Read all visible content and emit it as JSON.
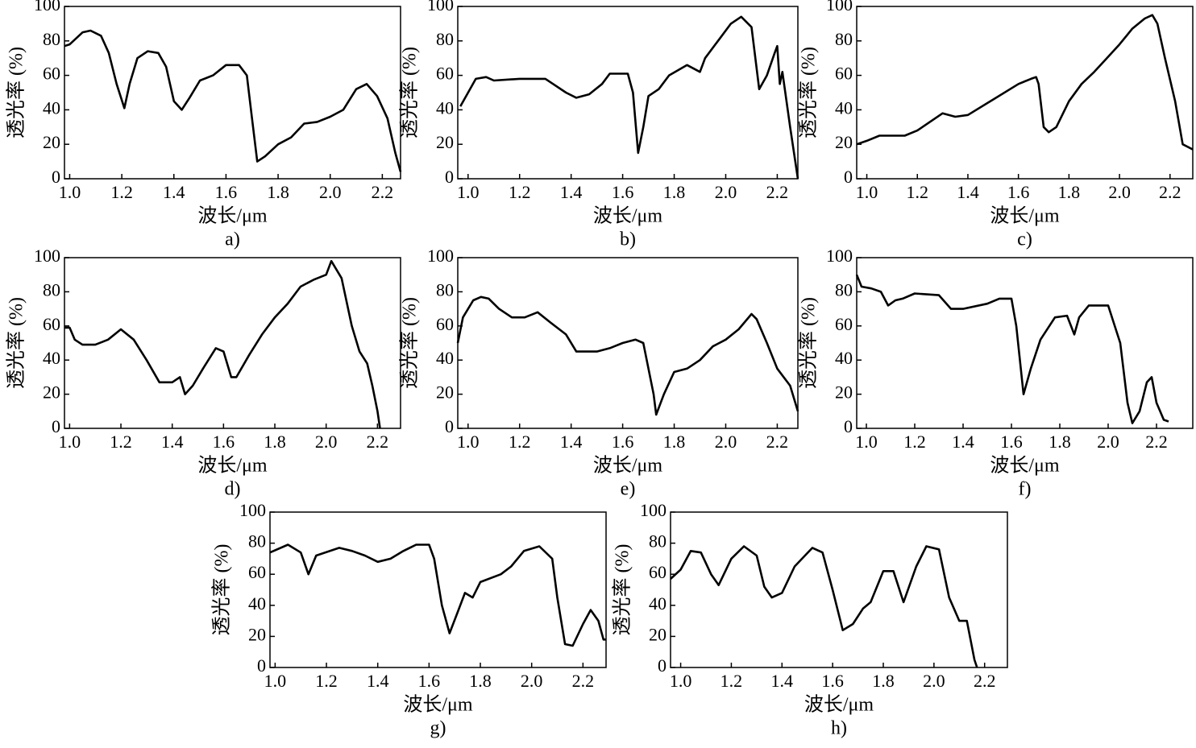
{
  "chart_data": [
    {
      "type": "line",
      "caption": "a)",
      "xlabel": "波长/μm",
      "ylabel": "透光率 (%)",
      "xlim": [
        0.98,
        2.27
      ],
      "ylim": [
        0,
        100
      ],
      "xticks": [
        {
          "value": 1,
          "label": "1.0"
        },
        1.2,
        1.4,
        1.6,
        1.8,
        {
          "value": 2,
          "label": "2.0"
        },
        2.2
      ],
      "yticks": [
        0,
        20,
        40,
        60,
        80,
        100
      ],
      "color": "#000000",
      "x": [
        0.98,
        1.0,
        1.05,
        1.08,
        1.12,
        1.15,
        1.18,
        1.21,
        1.23,
        1.26,
        1.3,
        1.34,
        1.37,
        1.4,
        1.43,
        1.46,
        1.5,
        1.55,
        1.6,
        1.65,
        1.68,
        1.7,
        1.72,
        1.75,
        1.8,
        1.85,
        1.9,
        1.95,
        2.0,
        2.05,
        2.1,
        2.14,
        2.18,
        2.22,
        2.25,
        2.27
      ],
      "values": [
        77,
        78,
        85,
        86,
        83,
        73,
        55,
        41,
        55,
        70,
        74,
        73,
        65,
        45,
        40,
        47,
        57,
        60,
        66,
        66,
        60,
        35,
        10,
        13,
        20,
        24,
        32,
        33,
        36,
        40,
        52,
        55,
        48,
        35,
        15,
        4
      ]
    },
    {
      "type": "line",
      "caption": "b)",
      "xlabel": "波长/μm",
      "ylabel": "透光率 (%)",
      "xlim": [
        0.96,
        2.28
      ],
      "ylim": [
        0,
        100
      ],
      "xticks": [
        {
          "value": 1,
          "label": "1.0"
        },
        1.2,
        1.4,
        1.6,
        1.8,
        {
          "value": 2,
          "label": "2.0"
        },
        2.2
      ],
      "yticks": [
        0,
        20,
        40,
        60,
        80,
        100
      ],
      "color": "#000000",
      "x": [
        0.97,
        1.0,
        1.03,
        1.07,
        1.1,
        1.2,
        1.3,
        1.33,
        1.38,
        1.42,
        1.47,
        1.52,
        1.55,
        1.62,
        1.64,
        1.66,
        1.68,
        1.7,
        1.74,
        1.78,
        1.85,
        1.9,
        1.92,
        1.97,
        2.02,
        2.06,
        2.1,
        2.13,
        2.16,
        2.19,
        2.2,
        2.21,
        2.22,
        2.25,
        2.28
      ],
      "values": [
        42,
        50,
        58,
        59,
        57,
        58,
        58,
        55,
        50,
        47,
        49,
        55,
        61,
        61,
        50,
        15,
        30,
        48,
        52,
        60,
        66,
        62,
        70,
        80,
        90,
        94,
        88,
        52,
        60,
        73,
        77,
        55,
        62,
        30,
        0
      ]
    },
    {
      "type": "line",
      "caption": "c)",
      "xlabel": "波长/μm",
      "ylabel": "透光率 (%)",
      "xlim": [
        0.96,
        2.29
      ],
      "ylim": [
        0,
        100
      ],
      "xticks": [
        {
          "value": 1,
          "label": "1.0"
        },
        1.2,
        1.4,
        1.6,
        1.8,
        {
          "value": 2,
          "label": "2.0"
        },
        2.2
      ],
      "yticks": [
        0,
        20,
        40,
        60,
        80,
        100
      ],
      "color": "#000000",
      "x": [
        0.96,
        1.0,
        1.05,
        1.15,
        1.2,
        1.3,
        1.35,
        1.4,
        1.5,
        1.6,
        1.65,
        1.67,
        1.68,
        1.7,
        1.72,
        1.75,
        1.8,
        1.85,
        1.9,
        1.95,
        2.0,
        2.05,
        2.1,
        2.13,
        2.15,
        2.18,
        2.22,
        2.25,
        2.29
      ],
      "values": [
        20,
        22,
        25,
        25,
        28,
        38,
        36,
        37,
        46,
        55,
        58,
        59,
        55,
        30,
        27,
        30,
        45,
        55,
        62,
        70,
        78,
        87,
        93,
        95,
        90,
        70,
        45,
        20,
        17
      ]
    },
    {
      "type": "line",
      "caption": "d)",
      "xlabel": "波长/μm",
      "ylabel": "透光率 (%)",
      "xlim": [
        0.98,
        2.29
      ],
      "ylim": [
        0,
        100
      ],
      "xticks": [
        {
          "value": 1,
          "label": "1.0"
        },
        1.2,
        1.4,
        1.6,
        1.8,
        {
          "value": 2,
          "label": "2.0"
        },
        2.2
      ],
      "yticks": [
        0,
        20,
        40,
        60,
        80,
        100
      ],
      "color": "#000000",
      "x": [
        0.98,
        1.0,
        1.02,
        1.05,
        1.1,
        1.15,
        1.2,
        1.25,
        1.3,
        1.35,
        1.4,
        1.43,
        1.45,
        1.48,
        1.52,
        1.57,
        1.6,
        1.63,
        1.65,
        1.7,
        1.75,
        1.8,
        1.85,
        1.9,
        1.95,
        2.0,
        2.02,
        2.06,
        2.1,
        2.13,
        2.16,
        2.18,
        2.2,
        2.21
      ],
      "values": [
        59,
        59,
        52,
        49,
        49,
        52,
        58,
        52,
        40,
        27,
        27,
        30,
        20,
        25,
        35,
        47,
        45,
        30,
        30,
        43,
        55,
        65,
        73,
        83,
        87,
        90,
        98,
        88,
        60,
        45,
        38,
        25,
        10,
        0
      ]
    },
    {
      "type": "line",
      "caption": "e)",
      "xlabel": "波长/μm",
      "ylabel": "透光率 (%)",
      "xlim": [
        0.96,
        2.28
      ],
      "ylim": [
        0,
        100
      ],
      "xticks": [
        {
          "value": 1,
          "label": "1.0"
        },
        1.2,
        1.4,
        1.6,
        1.8,
        {
          "value": 2,
          "label": "2.0"
        },
        2.2
      ],
      "yticks": [
        0,
        20,
        40,
        60,
        80,
        100
      ],
      "color": "#000000",
      "x": [
        0.96,
        0.98,
        1.02,
        1.05,
        1.08,
        1.12,
        1.17,
        1.22,
        1.27,
        1.32,
        1.38,
        1.42,
        1.5,
        1.55,
        1.6,
        1.65,
        1.68,
        1.72,
        1.73,
        1.76,
        1.8,
        1.85,
        1.9,
        1.95,
        2.0,
        2.05,
        2.1,
        2.12,
        2.16,
        2.2,
        2.25,
        2.28
      ],
      "values": [
        50,
        65,
        75,
        77,
        76,
        70,
        65,
        65,
        68,
        62,
        55,
        45,
        45,
        47,
        50,
        52,
        50,
        20,
        8,
        20,
        33,
        35,
        40,
        48,
        52,
        58,
        67,
        64,
        50,
        35,
        25,
        10
      ]
    },
    {
      "type": "line",
      "caption": "f)",
      "xlabel": "波长/μm",
      "ylabel": "透光率 (%)",
      "xlim": [
        0.96,
        2.35
      ],
      "ylim": [
        0,
        100
      ],
      "xticks": [
        {
          "value": 1,
          "label": "1.0"
        },
        1.2,
        1.4,
        1.6,
        1.8,
        {
          "value": 2,
          "label": "2.0"
        },
        2.2
      ],
      "yticks": [
        0,
        20,
        40,
        60,
        80,
        100
      ],
      "color": "#000000",
      "x": [
        0.96,
        0.98,
        1.02,
        1.06,
        1.09,
        1.12,
        1.15,
        1.2,
        1.3,
        1.35,
        1.4,
        1.5,
        1.55,
        1.6,
        1.62,
        1.65,
        1.68,
        1.72,
        1.78,
        1.83,
        1.86,
        1.88,
        1.92,
        2.0,
        2.05,
        2.08,
        2.1,
        2.13,
        2.16,
        2.18,
        2.2,
        2.23,
        2.25
      ],
      "values": [
        90,
        83,
        82,
        80,
        72,
        75,
        76,
        79,
        78,
        70,
        70,
        73,
        76,
        76,
        60,
        20,
        35,
        52,
        65,
        66,
        55,
        65,
        72,
        72,
        50,
        15,
        3,
        10,
        27,
        30,
        15,
        5,
        4
      ]
    },
    {
      "type": "line",
      "caption": "g)",
      "xlabel": "波长/μm",
      "ylabel": "透光率 (%)",
      "xlim": [
        0.98,
        2.29
      ],
      "ylim": [
        0,
        100
      ],
      "xticks": [
        {
          "value": 1,
          "label": "1.0"
        },
        1.2,
        1.4,
        1.6,
        1.8,
        {
          "value": 2,
          "label": "2.0"
        },
        2.2
      ],
      "yticks": [
        0,
        20,
        40,
        60,
        80,
        100
      ],
      "color": "#000000",
      "x": [
        0.98,
        1.05,
        1.1,
        1.13,
        1.16,
        1.25,
        1.3,
        1.35,
        1.4,
        1.45,
        1.5,
        1.55,
        1.6,
        1.62,
        1.65,
        1.68,
        1.71,
        1.74,
        1.77,
        1.8,
        1.88,
        1.92,
        1.97,
        2.03,
        2.08,
        2.1,
        2.13,
        2.16,
        2.2,
        2.23,
        2.26,
        2.28,
        2.29
      ],
      "values": [
        74,
        79,
        74,
        60,
        72,
        77,
        75,
        72,
        68,
        70,
        75,
        79,
        79,
        70,
        40,
        22,
        35,
        48,
        45,
        55,
        60,
        65,
        75,
        78,
        70,
        45,
        15,
        14,
        28,
        37,
        30,
        18,
        18
      ]
    },
    {
      "type": "line",
      "caption": "h)",
      "xlabel": "波长/μm",
      "ylabel": "透光率 (%)",
      "xlim": [
        0.96,
        2.29
      ],
      "ylim": [
        0,
        100
      ],
      "xticks": [
        {
          "value": 1,
          "label": "1.0"
        },
        1.2,
        1.4,
        1.6,
        1.8,
        {
          "value": 2,
          "label": "2.0"
        },
        2.2
      ],
      "yticks": [
        0,
        20,
        40,
        60,
        80,
        100
      ],
      "color": "#000000",
      "x": [
        0.96,
        1.0,
        1.04,
        1.08,
        1.12,
        1.15,
        1.2,
        1.25,
        1.3,
        1.33,
        1.36,
        1.4,
        1.45,
        1.52,
        1.56,
        1.6,
        1.64,
        1.68,
        1.72,
        1.75,
        1.8,
        1.84,
        1.88,
        1.93,
        1.97,
        2.02,
        2.06,
        2.1,
        2.13,
        2.16,
        2.17
      ],
      "values": [
        57,
        63,
        75,
        74,
        60,
        53,
        70,
        78,
        72,
        52,
        45,
        48,
        65,
        77,
        74,
        50,
        24,
        28,
        38,
        42,
        62,
        62,
        42,
        65,
        78,
        76,
        45,
        30,
        30,
        5,
        0
      ]
    }
  ]
}
